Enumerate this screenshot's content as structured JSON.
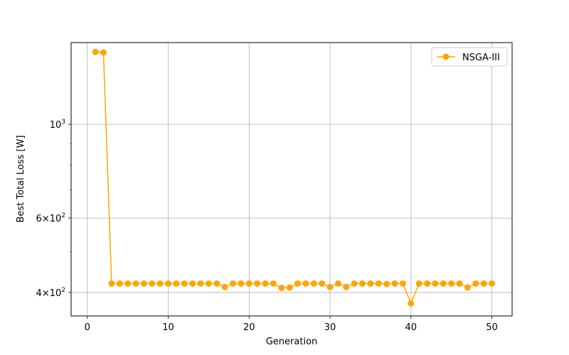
{
  "chart_data": {
    "type": "line",
    "title": "",
    "xlabel": "Generation",
    "ylabel": "Best Total Loss [W]",
    "yscale": "log",
    "xlim": [
      -2,
      52.5
    ],
    "ylim": [
      352,
      1560
    ],
    "x_ticks": [
      0,
      10,
      20,
      30,
      40,
      50
    ],
    "y_ticks": [
      {
        "value": 400,
        "base": "4",
        "sup": "2"
      },
      {
        "value": 600,
        "base": "6",
        "sup": "2"
      },
      {
        "value": 1000,
        "base": "10",
        "sup": "3"
      }
    ],
    "y_minor_ticks": [
      500,
      700,
      800,
      900
    ],
    "grid": true,
    "legend_position": "top-right",
    "series": [
      {
        "name": "NSGA-III",
        "color": "#ffa500",
        "marker": "circle",
        "x": [
          1,
          2,
          3,
          4,
          5,
          6,
          7,
          8,
          9,
          10,
          11,
          12,
          13,
          14,
          15,
          16,
          17,
          18,
          19,
          20,
          21,
          22,
          23,
          24,
          25,
          26,
          27,
          28,
          29,
          30,
          31,
          32,
          33,
          34,
          35,
          36,
          37,
          38,
          39,
          40,
          41,
          42,
          43,
          44,
          45,
          46,
          47,
          48,
          49,
          50
        ],
        "y": [
          1483,
          1478,
          420,
          420,
          420,
          420,
          420,
          420,
          420,
          420,
          420,
          420,
          420,
          420,
          420,
          420,
          412,
          420,
          420,
          420,
          420,
          420,
          420,
          410,
          411,
          420,
          420,
          420,
          420,
          412,
          420,
          412,
          420,
          420,
          420,
          420,
          419,
          420,
          420,
          377,
          420,
          420,
          420,
          420,
          420,
          420,
          411,
          420,
          420,
          420
        ]
      }
    ]
  }
}
